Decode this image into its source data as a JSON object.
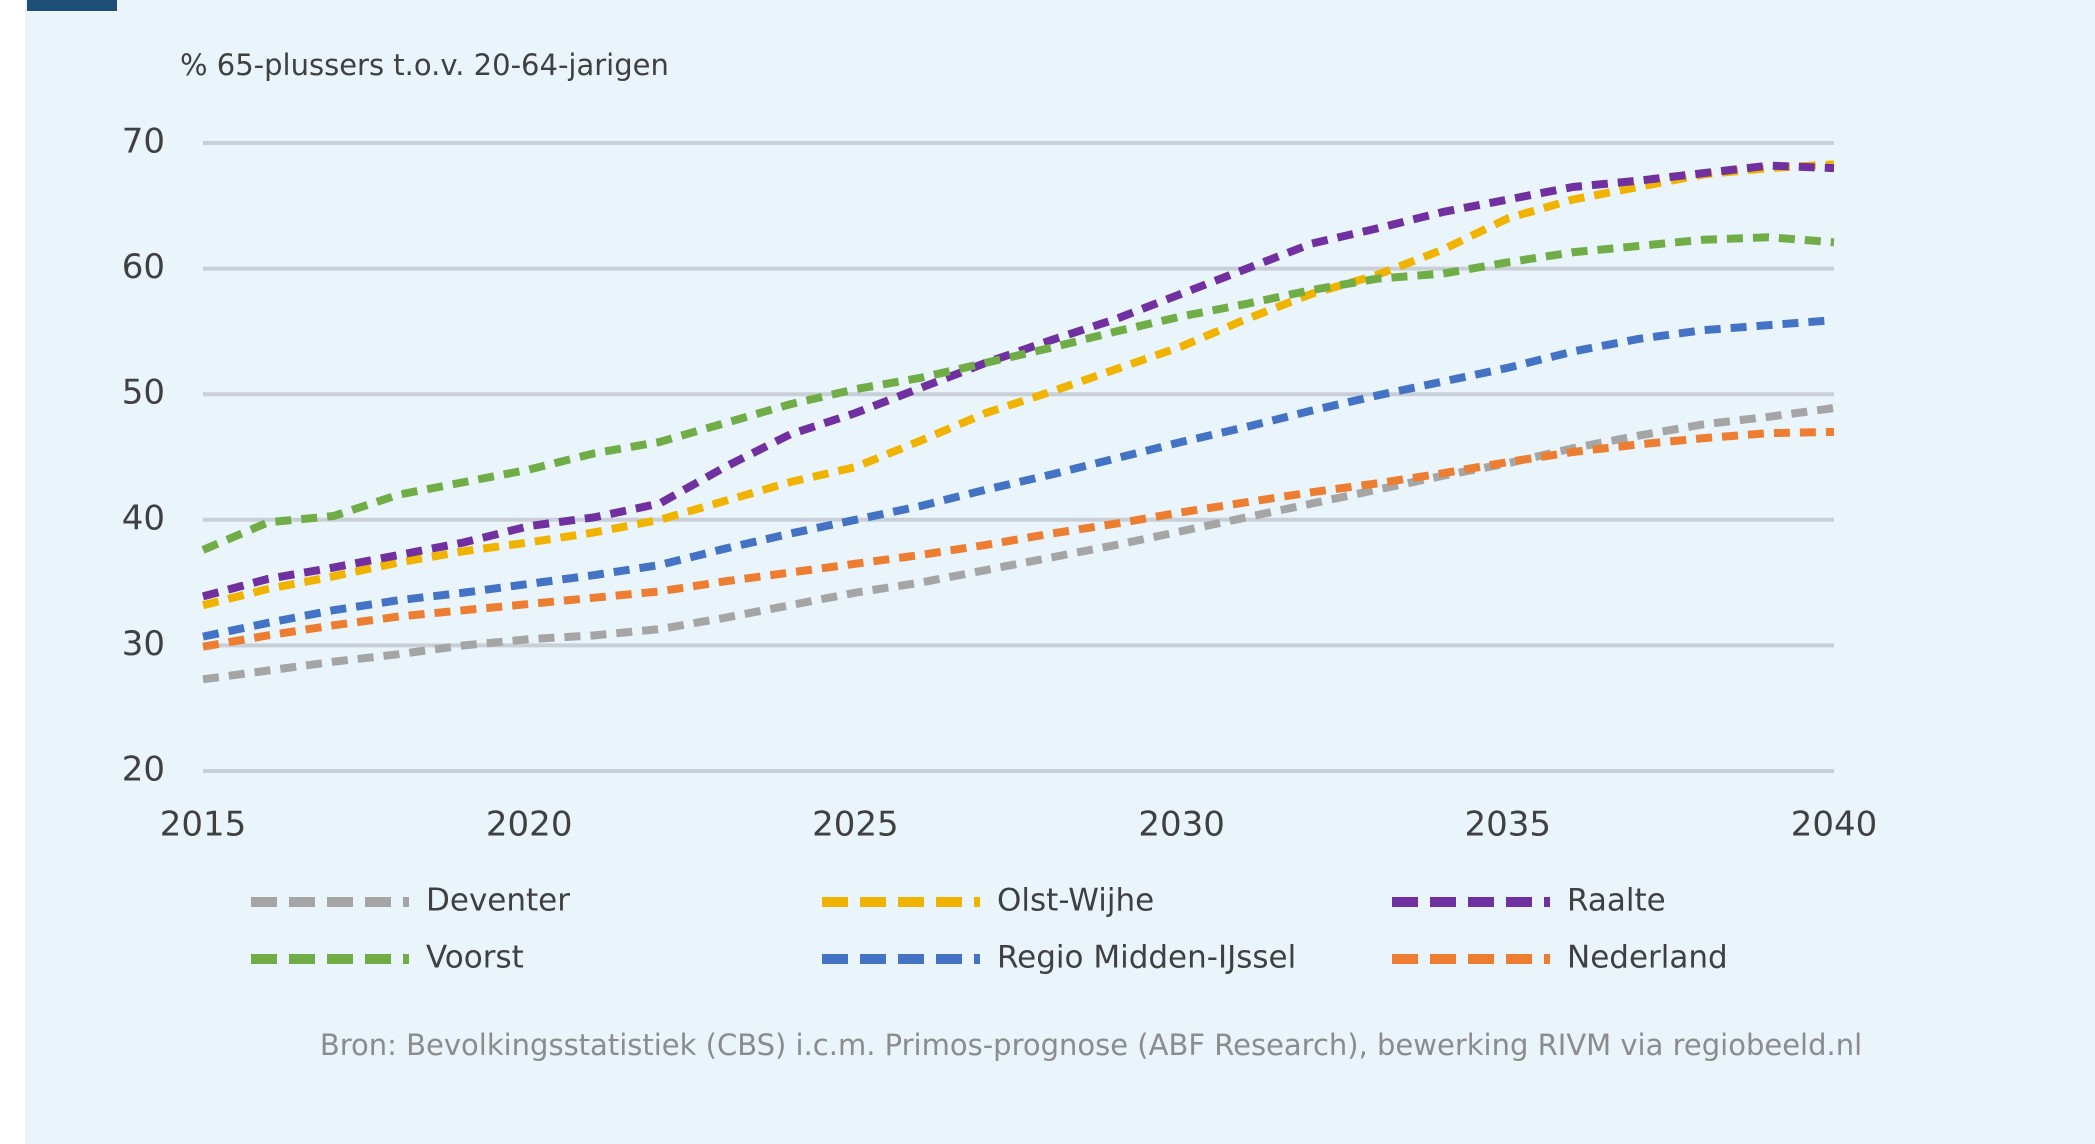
{
  "chart_data": {
    "type": "line",
    "y_label": "% 65-plussers t.o.v. 20-64-jarigen",
    "source": "Bron: Bevolkingsstatistiek (CBS) i.c.m. Primos-prognose (ABF Research), bewerking RIVM via regiobeeld.nl",
    "x": [
      2015,
      2016,
      2017,
      2018,
      2019,
      2020,
      2021,
      2022,
      2023,
      2024,
      2025,
      2026,
      2027,
      2028,
      2029,
      2030,
      2031,
      2032,
      2033,
      2034,
      2035,
      2036,
      2037,
      2038,
      2039,
      2040
    ],
    "xlim": [
      2015,
      2040
    ],
    "xticks": [
      2015,
      2020,
      2025,
      2030,
      2035,
      2040
    ],
    "ylim": [
      20,
      70
    ],
    "yticks": [
      20,
      30,
      40,
      50,
      60,
      70
    ],
    "grid": true,
    "series": [
      {
        "name": "Deventer",
        "color": "#a5a5a5",
        "values": [
          27.3,
          28.0,
          28.7,
          29.3,
          30.0,
          30.5,
          30.8,
          31.3,
          32.2,
          33.2,
          34.2,
          35.0,
          36.0,
          37.0,
          38.0,
          39.1,
          40.2,
          41.3,
          42.4,
          43.5,
          44.5,
          45.7,
          46.7,
          47.6,
          48.2,
          48.9
        ]
      },
      {
        "name": "Olst-Wijhe",
        "color": "#f0b400",
        "values": [
          33.2,
          34.5,
          35.5,
          36.6,
          37.5,
          38.2,
          39.0,
          40.0,
          41.5,
          43.0,
          44.2,
          46.3,
          48.5,
          50.2,
          52.0,
          53.8,
          56.0,
          58.0,
          59.5,
          61.5,
          64.0,
          65.5,
          66.5,
          67.5,
          68.0,
          68.3
        ]
      },
      {
        "name": "Raalte",
        "color": "#7030a0",
        "values": [
          33.9,
          35.3,
          36.2,
          37.2,
          38.2,
          39.5,
          40.2,
          41.3,
          44.2,
          46.8,
          48.5,
          50.5,
          52.5,
          54.3,
          56.0,
          58.0,
          60.0,
          62.0,
          63.2,
          64.5,
          65.5,
          66.5,
          67.0,
          67.6,
          68.2,
          68.0
        ]
      },
      {
        "name": "Voorst",
        "color": "#70ad47",
        "values": [
          37.6,
          39.8,
          40.3,
          42.0,
          43.0,
          44.0,
          45.3,
          46.2,
          47.7,
          49.2,
          50.4,
          51.3,
          52.5,
          53.7,
          55.0,
          56.2,
          57.2,
          58.3,
          59.2,
          59.6,
          60.5,
          61.3,
          61.8,
          62.3,
          62.5,
          62.1
        ]
      },
      {
        "name": "Regio Midden-IJssel",
        "color": "#4472c4",
        "values": [
          30.7,
          31.8,
          32.8,
          33.6,
          34.2,
          34.9,
          35.6,
          36.4,
          37.7,
          38.9,
          40.0,
          41.1,
          42.4,
          43.6,
          44.9,
          46.2,
          47.4,
          48.7,
          49.9,
          51.0,
          52.1,
          53.4,
          54.4,
          55.1,
          55.5,
          55.9
        ]
      },
      {
        "name": "Nederland",
        "color": "#ed7d31",
        "values": [
          29.9,
          30.8,
          31.6,
          32.3,
          32.8,
          33.3,
          33.8,
          34.3,
          35.1,
          35.8,
          36.5,
          37.2,
          38.0,
          38.9,
          39.7,
          40.6,
          41.4,
          42.2,
          42.9,
          43.7,
          44.6,
          45.4,
          46.0,
          46.5,
          46.9,
          47.0
        ]
      }
    ]
  }
}
